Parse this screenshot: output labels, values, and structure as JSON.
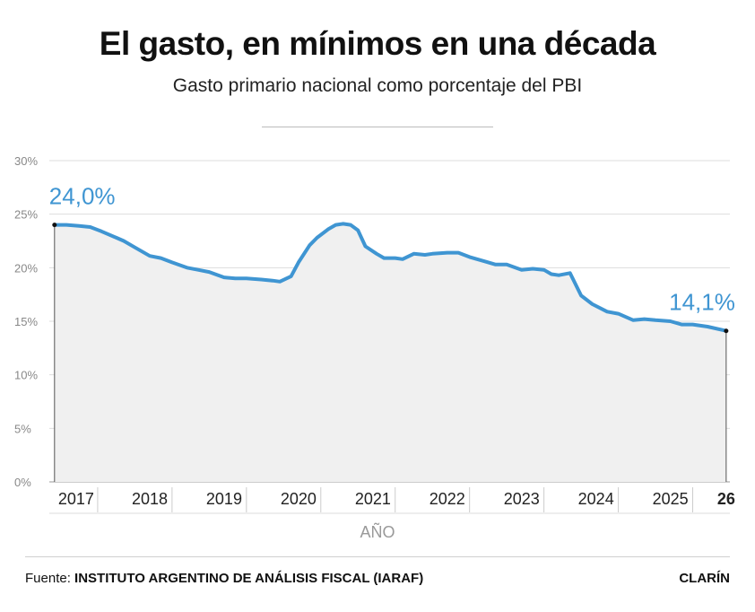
{
  "header": {
    "title": "El gasto, en mínimos en una década",
    "subtitle": "Gasto primario nacional como porcentaje del PBI"
  },
  "footer": {
    "source_prefix": "Fuente:",
    "source_name": "INSTITUTO ARGENTINO DE ANÁLISIS FISCAL (IARAF)",
    "brand": "CLARÍN"
  },
  "colors": {
    "line": "#3f95d2",
    "area": "#f0f0f0",
    "grid": "#dddddd",
    "label": "#3f95d2",
    "axis_text": "#888888"
  },
  "chart_data": {
    "type": "area",
    "title": "El gasto, en mínimos en una década",
    "subtitle": "Gasto primario nacional como porcentaje del PBI",
    "xlabel": "AÑO",
    "ylabel": "",
    "ylim": [
      0,
      30
    ],
    "yticks": [
      0,
      5,
      10,
      15,
      20,
      25,
      30
    ],
    "ytick_labels": [
      "0%",
      "5%",
      "10%",
      "15%",
      "20%",
      "25%",
      "30%"
    ],
    "x_tick_labels": [
      "2017",
      "2018",
      "2019",
      "2020",
      "2021",
      "2022",
      "2023",
      "2024",
      "2025",
      "26"
    ],
    "grid": true,
    "x": [
      2016.92,
      2017.08,
      2017.25,
      2017.4,
      2017.55,
      2017.75,
      2017.85,
      2018.0,
      2018.2,
      2018.35,
      2018.5,
      2018.7,
      2018.85,
      2019.0,
      2019.2,
      2019.35,
      2019.5,
      2019.7,
      2019.85,
      2019.95,
      2020.1,
      2020.2,
      2020.35,
      2020.45,
      2020.6,
      2020.7,
      2020.8,
      2020.9,
      2021.0,
      2021.1,
      2021.25,
      2021.35,
      2021.5,
      2021.6,
      2021.75,
      2021.9,
      2022.0,
      2022.2,
      2022.35,
      2022.5,
      2022.7,
      2022.85,
      2023.0,
      2023.2,
      2023.35,
      2023.5,
      2023.6,
      2023.7,
      2023.85,
      2024.0,
      2024.15,
      2024.35,
      2024.5,
      2024.7,
      2024.85,
      2025.0,
      2025.2,
      2025.35,
      2025.5,
      2025.7,
      2025.95
    ],
    "series": [
      {
        "name": "",
        "values": [
          24.0,
          24.0,
          23.9,
          23.8,
          23.4,
          22.8,
          22.5,
          21.9,
          21.1,
          20.9,
          20.5,
          20.0,
          19.8,
          19.6,
          19.1,
          19.0,
          19.0,
          18.9,
          18.8,
          18.7,
          19.2,
          20.5,
          22.1,
          22.8,
          23.6,
          24.0,
          24.1,
          24.0,
          23.5,
          22.0,
          21.3,
          20.9,
          20.9,
          20.8,
          21.3,
          21.2,
          21.3,
          21.4,
          21.4,
          21.0,
          20.6,
          20.3,
          20.3,
          19.8,
          19.9,
          19.8,
          19.4,
          19.3,
          19.5,
          17.4,
          16.6,
          15.9,
          15.7,
          15.1,
          15.2,
          15.1,
          15.0,
          14.7,
          14.7,
          14.5,
          14.1
        ]
      }
    ],
    "annotations": [
      {
        "text": "24,0%",
        "x": 2016.92,
        "y": 24.0
      },
      {
        "text": "14,1%",
        "x": 2025.95,
        "y": 14.1
      }
    ]
  }
}
